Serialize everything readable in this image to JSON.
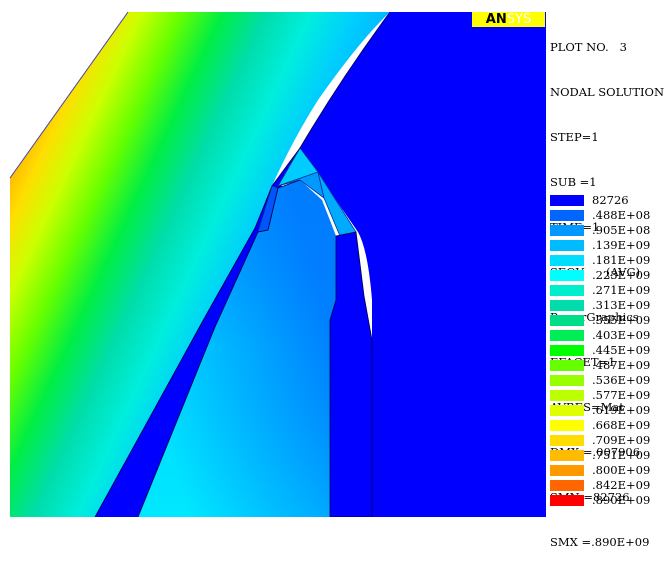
{
  "logo": {
    "text_a": "AN",
    "text_b": "SYS"
  },
  "info": [
    "PLOT NO.   3",
    "NODAL SOLUTION",
    "STEP=1",
    "SUB =1",
    "TIME=1",
    "SEQV      (AVG)",
    "PowerGraphics",
    "EFACET=1",
    "AVRES=Mat",
    "DMX =.007906",
    "SMN =82726",
    "SMX =.890E+09"
  ],
  "legend": [
    {
      "label": "82726",
      "color": "#0000ff"
    },
    {
      "label": ".488E+08",
      "color": "#0066ff"
    },
    {
      "label": ".905E+08",
      "color": "#0099ff"
    },
    {
      "label": ".139E+09",
      "color": "#00bbff"
    },
    {
      "label": ".181E+09",
      "color": "#00ddff"
    },
    {
      "label": ".223E+09",
      "color": "#00ffff"
    },
    {
      "label": ".271E+09",
      "color": "#00eecc"
    },
    {
      "label": ".313E+09",
      "color": "#00ddaa"
    },
    {
      "label": ".355E+09",
      "color": "#00dd88"
    },
    {
      "label": ".403E+09",
      "color": "#00ee55"
    },
    {
      "label": ".445E+09",
      "color": "#00ff00"
    },
    {
      "label": ".487E+09",
      "color": "#66ff00"
    },
    {
      "label": ".536E+09",
      "color": "#99ff00"
    },
    {
      "label": ".577E+09",
      "color": "#bbff00"
    },
    {
      "label": ".619E+09",
      "color": "#ddff00"
    },
    {
      "label": ".668E+09",
      "color": "#ffff00"
    },
    {
      "label": ".709E+09",
      "color": "#ffdd00"
    },
    {
      "label": ".751E+09",
      "color": "#ffbb00"
    },
    {
      "label": ".800E+09",
      "color": "#ff9900"
    },
    {
      "label": ".842E+09",
      "color": "#ff6600"
    },
    {
      "label": ".890E+09",
      "color": "#ff0000"
    }
  ]
}
